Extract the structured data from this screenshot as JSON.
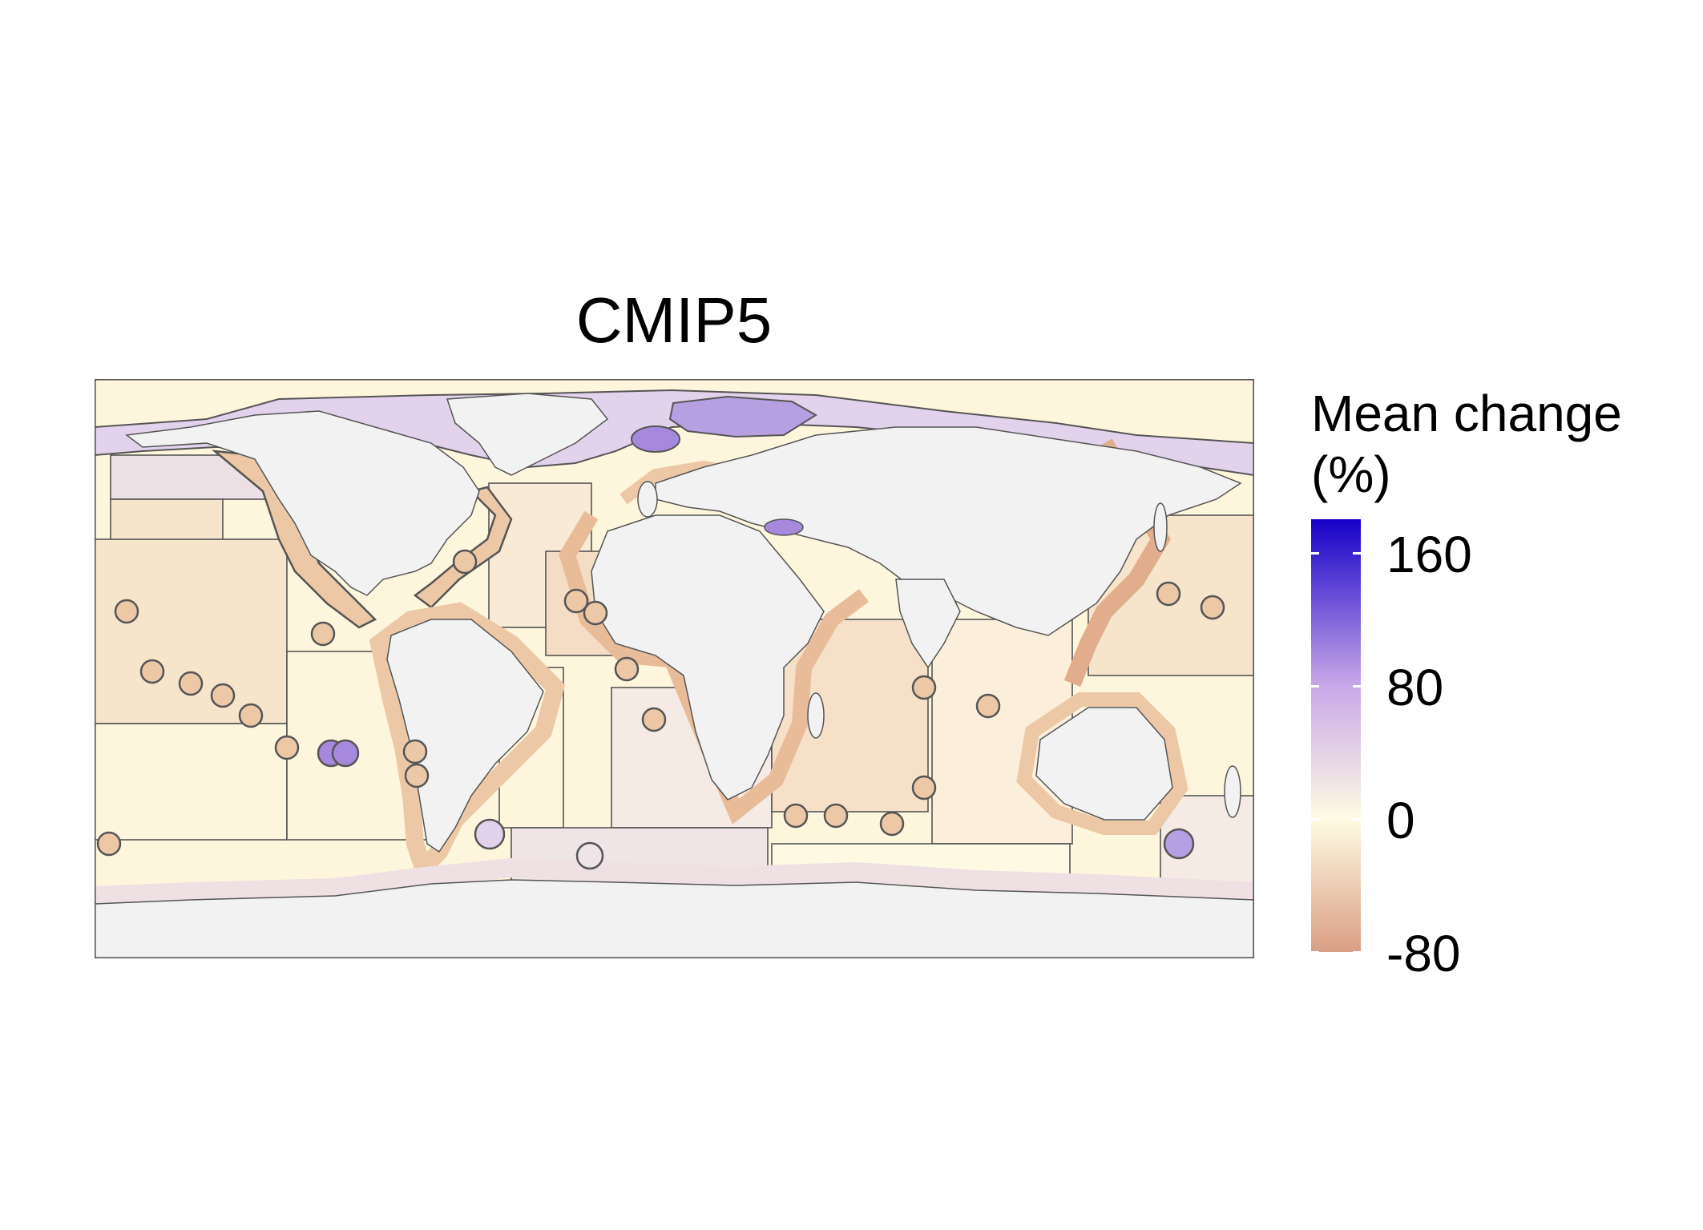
{
  "title": "CMIP5",
  "legend": {
    "title_line1": "Mean change",
    "title_line2": "(%)",
    "min": -80,
    "max": 180,
    "ticks": [
      {
        "value": 160,
        "label": "160"
      },
      {
        "value": 80,
        "label": "80"
      },
      {
        "value": 0,
        "label": "0"
      },
      {
        "value": -80,
        "label": "-80"
      }
    ],
    "colors": {
      "low": "#d99f84",
      "zero": "#fffbe3",
      "mid": "#c8a8e8",
      "high": "#1500c8"
    }
  },
  "map_colors": {
    "land": "#f2f2f2",
    "border": "#555555",
    "ocean_pale": "#fdf6dc",
    "ocean_tan": "#f6e4cb",
    "ocean_pink": "#f3e8e6",
    "coast_tan": "#ecc8a6",
    "coast_dark": "#e2ad8c",
    "arctic_lilac": "#e2d2ec",
    "purple": "#a688dd"
  }
}
